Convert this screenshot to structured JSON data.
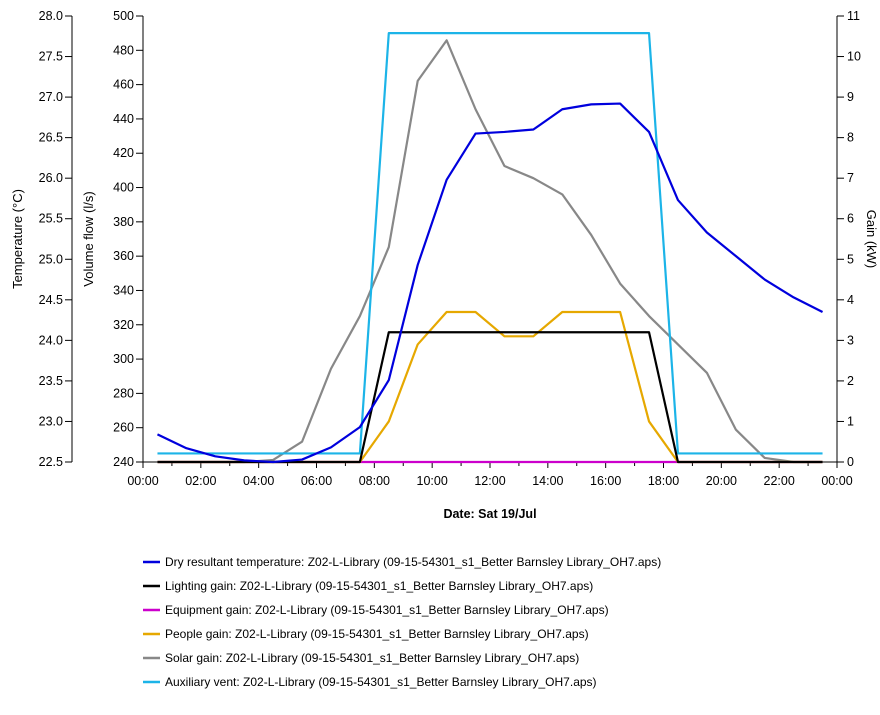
{
  "chart_data": {
    "type": "line",
    "xlabel": "Date: Sat 19/Jul",
    "x_ticks": [
      "00:00",
      "02:00",
      "04:00",
      "06:00",
      "08:00",
      "10:00",
      "12:00",
      "14:00",
      "16:00",
      "18:00",
      "20:00",
      "22:00",
      "00:00"
    ],
    "xlim_hours": [
      0,
      24
    ],
    "legend_position": "bottom",
    "grid": false,
    "axes": {
      "temperature": {
        "label": "Temperature (°C)",
        "lim": [
          22.5,
          28.0
        ],
        "ticks": [
          "28.0",
          "27.5",
          "27.0",
          "26.5",
          "26.0",
          "25.5",
          "25.0",
          "24.5",
          "24.0",
          "23.5",
          "23.0",
          "22.5"
        ],
        "tick_values": [
          28.0,
          27.5,
          27.0,
          26.5,
          26.0,
          25.5,
          25.0,
          24.5,
          24.0,
          23.5,
          23.0,
          22.5
        ]
      },
      "volume_flow": {
        "label": "Volume flow (l/s)",
        "lim": [
          240,
          500
        ],
        "ticks": [
          "500",
          "480",
          "460",
          "440",
          "420",
          "400",
          "380",
          "360",
          "340",
          "320",
          "300",
          "280",
          "260",
          "240"
        ],
        "tick_values": [
          500,
          480,
          460,
          440,
          420,
          400,
          380,
          360,
          340,
          320,
          300,
          280,
          260,
          240
        ]
      },
      "gain": {
        "label": "Gain (kW)",
        "lim": [
          0,
          11
        ],
        "ticks": [
          "11",
          "10",
          "9",
          "8",
          "7",
          "6",
          "5",
          "4",
          "3",
          "2",
          "1",
          "0"
        ],
        "tick_values": [
          11,
          10,
          9,
          8,
          7,
          6,
          5,
          4,
          3,
          2,
          1,
          0
        ]
      }
    },
    "series": [
      {
        "name": "Dry resultant temperature: Z02-L-Library (09-15-54301_s1_Better Barnsley Library_OH7.aps)",
        "axis": "temperature",
        "color": "#0000dd",
        "x": [
          0.5,
          1.5,
          2.5,
          3.5,
          4.5,
          5.5,
          6.5,
          7.5,
          8.5,
          9.5,
          10.5,
          11.5,
          12.5,
          13.5,
          14.5,
          15.5,
          16.5,
          17.5,
          18.5,
          19.5,
          20.5,
          21.5,
          22.5,
          23.5
        ],
        "y": [
          22.84,
          22.67,
          22.57,
          22.52,
          22.5,
          22.53,
          22.68,
          22.93,
          23.51,
          24.93,
          25.98,
          26.55,
          26.57,
          26.6,
          26.85,
          26.91,
          26.92,
          26.57,
          25.73,
          25.33,
          25.04,
          24.75,
          24.53,
          24.35
        ]
      },
      {
        "name": "Lighting gain: Z02-L-Library (09-15-54301_s1_Better Barnsley Library_OH7.aps)",
        "axis": "gain",
        "color": "#000000",
        "x": [
          0.5,
          7.5,
          8.5,
          17.5,
          18.5,
          23.5
        ],
        "y": [
          0,
          0,
          3.2,
          3.2,
          0,
          0
        ]
      },
      {
        "name": "Equipment gain: Z02-L-Library (09-15-54301_s1_Better Barnsley Library_OH7.aps)",
        "axis": "gain",
        "color": "#cc00cc",
        "x": [
          0.5,
          23.5
        ],
        "y": [
          0,
          0
        ]
      },
      {
        "name": "People gain: Z02-L-Library (09-15-54301_s1_Better Barnsley Library_OH7.aps)",
        "axis": "gain",
        "color": "#e6a800",
        "x": [
          0.5,
          7.5,
          8.5,
          9.5,
          10.5,
          11.5,
          12.5,
          13.5,
          14.5,
          15.5,
          16.5,
          17.5,
          18.5,
          23.5
        ],
        "y": [
          0,
          0,
          1.0,
          2.9,
          3.7,
          3.7,
          3.1,
          3.1,
          3.7,
          3.7,
          3.7,
          1.0,
          0,
          0
        ]
      },
      {
        "name": "Solar gain: Z02-L-Library (09-15-54301_s1_Better Barnsley Library_OH7.aps)",
        "axis": "gain",
        "color": "#888888",
        "x": [
          0.5,
          1.5,
          2.5,
          3.5,
          4.5,
          5.5,
          6.5,
          7.5,
          8.5,
          9.5,
          10.5,
          11.5,
          12.5,
          13.5,
          14.5,
          15.5,
          16.5,
          17.5,
          18.5,
          19.5,
          20.5,
          21.5,
          22.5,
          23.5
        ],
        "y": [
          0,
          0,
          0,
          0,
          0.05,
          0.5,
          2.3,
          3.6,
          5.3,
          9.4,
          10.4,
          8.7,
          7.3,
          7.0,
          6.6,
          5.6,
          4.4,
          3.6,
          2.9,
          2.2,
          0.8,
          0.1,
          0,
          0
        ]
      },
      {
        "name": "Auxiliary vent: Z02-L-Library (09-15-54301_s1_Better Barnsley Library_OH7.aps)",
        "axis": "volume_flow",
        "color": "#1cb4e8",
        "x": [
          0.5,
          7.5,
          8.5,
          17.5,
          18.5,
          23.5
        ],
        "y": [
          245,
          245,
          490,
          490,
          245,
          245
        ]
      }
    ]
  }
}
